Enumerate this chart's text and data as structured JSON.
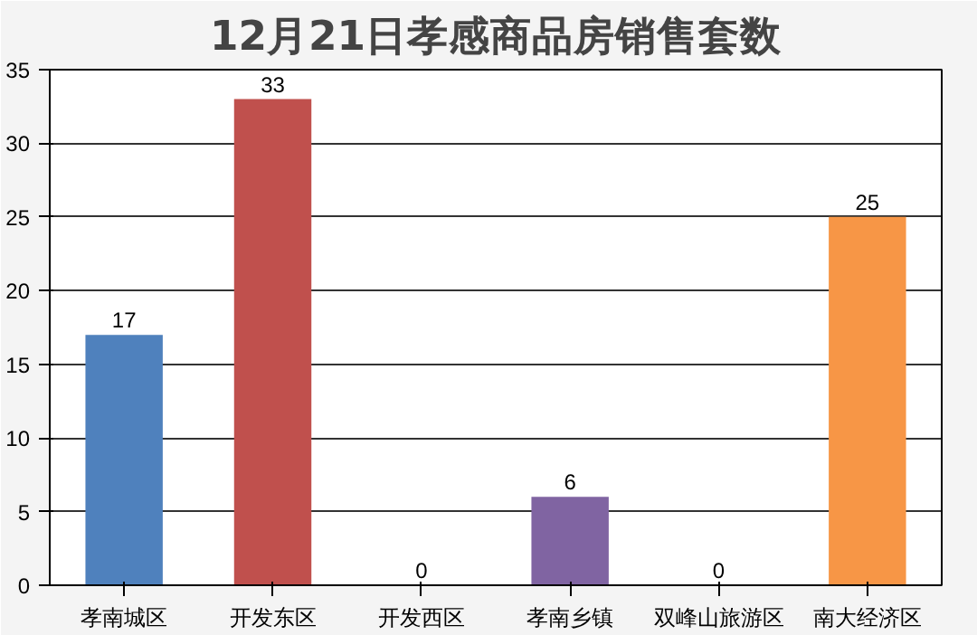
{
  "chart_data": {
    "type": "bar",
    "title": "12月21日孝感商品房销售套数",
    "categories": [
      "孝南城区",
      "开发东区",
      "开发西区",
      "孝南乡镇",
      "双峰山旅游区",
      "南大经济区"
    ],
    "values": [
      17,
      33,
      0,
      6,
      0,
      25
    ],
    "colors": [
      "#4f81bd",
      "#c0504d",
      "#9bbb59",
      "#8064a2",
      "#4bacc6",
      "#f79646"
    ],
    "ylim": [
      0,
      35
    ],
    "yticks": [
      0,
      5,
      10,
      15,
      20,
      25,
      30,
      35
    ],
    "grid": "y",
    "data_labels": true
  }
}
